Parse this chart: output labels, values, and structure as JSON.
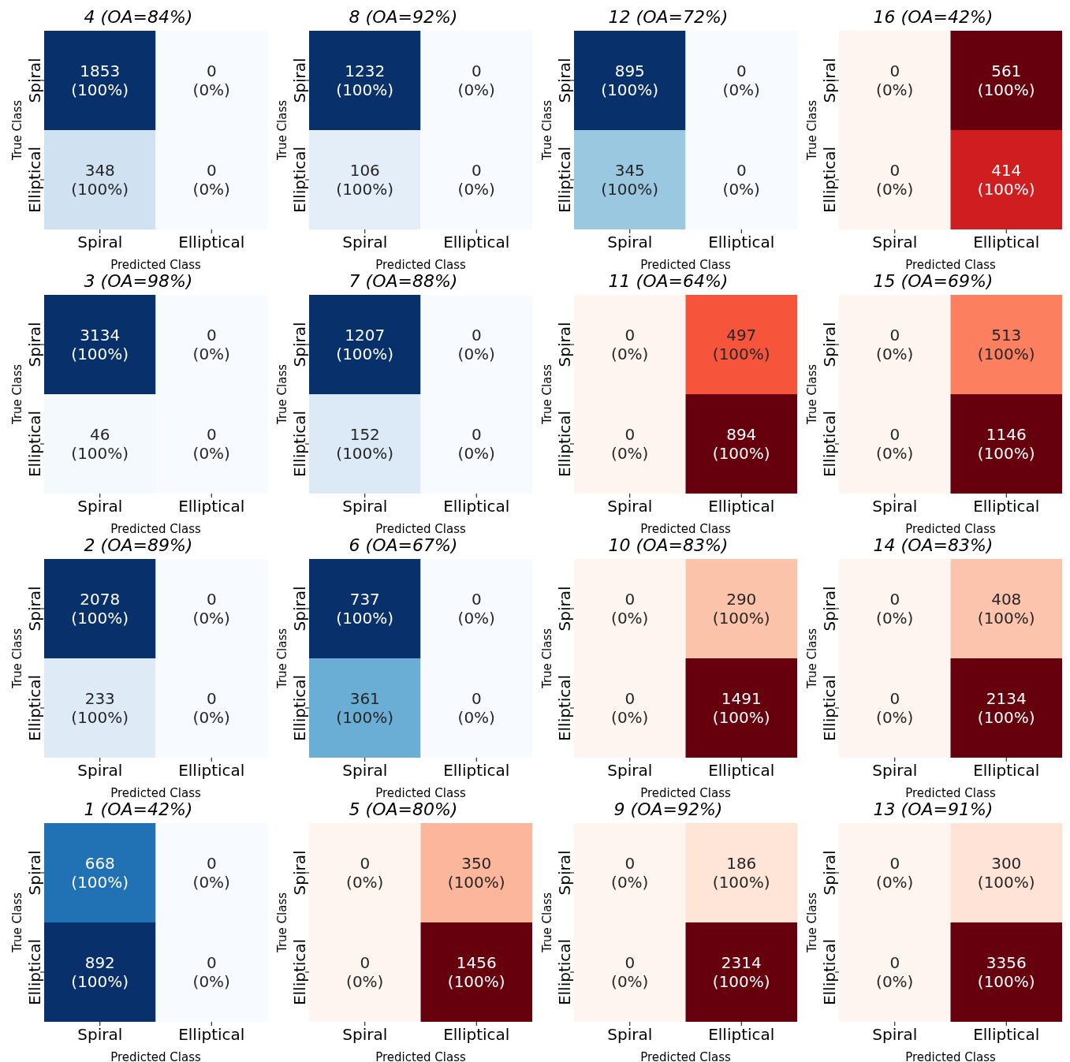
{
  "chart_data": [
    {
      "type": "heatmap",
      "title": "4 (OA=84%)",
      "xlabel": "Predicted Class",
      "ylabel": "True Class",
      "categories": [
        "Spiral",
        "Elliptical"
      ],
      "y_categories": [
        "Spiral",
        "Elliptical"
      ],
      "cells": [
        [
          1853,
          0
        ],
        [
          348,
          0
        ]
      ],
      "data_labels": true,
      "annotations": [
        "(100%)",
        "(0%)",
        "(100%)",
        "(0%)"
      ],
      "colors": [
        [
          "#08306b",
          "#f7fbff"
        ],
        [
          "#d0e1f2",
          "#f7fbff"
        ]
      ]
    },
    {
      "type": "heatmap",
      "title": "8 (OA=92%)",
      "xlabel": "Predicted Class",
      "ylabel": "True Class",
      "categories": [
        "Spiral",
        "Elliptical"
      ],
      "y_categories": [
        "Spiral",
        "Elliptical"
      ],
      "cells": [
        [
          1232,
          0
        ],
        [
          106,
          0
        ]
      ],
      "data_labels": true,
      "annotations": [
        "(100%)",
        "(0%)",
        "(100%)",
        "(0%)"
      ],
      "colors": [
        [
          "#08306b",
          "#f7fbff"
        ],
        [
          "#e3eef9",
          "#f7fbff"
        ]
      ]
    },
    {
      "type": "heatmap",
      "title": "12 (OA=72%)",
      "xlabel": "Predicted Class",
      "ylabel": "True Class",
      "categories": [
        "Spiral",
        "Elliptical"
      ],
      "y_categories": [
        "Spiral",
        "Elliptical"
      ],
      "cells": [
        [
          895,
          0
        ],
        [
          345,
          0
        ]
      ],
      "data_labels": true,
      "annotations": [
        "(100%)",
        "(0%)",
        "(100%)",
        "(0%)"
      ],
      "colors": [
        [
          "#08306b",
          "#f7fbff"
        ],
        [
          "#9ac8e0",
          "#f7fbff"
        ]
      ]
    },
    {
      "type": "heatmap",
      "title": "16 (OA=42%)",
      "xlabel": "Predicted Class",
      "ylabel": "True Class",
      "categories": [
        "Spiral",
        "Elliptical"
      ],
      "y_categories": [
        "Spiral",
        "Elliptical"
      ],
      "cells": [
        [
          0,
          561
        ],
        [
          0,
          414
        ]
      ],
      "data_labels": true,
      "annotations": [
        "(0%)",
        "(100%)",
        "(0%)",
        "(100%)"
      ],
      "colors": [
        [
          "#fff5f0",
          "#67000d"
        ],
        [
          "#fff5f0",
          "#d01d1f"
        ]
      ]
    },
    {
      "type": "heatmap",
      "title": "3 (OA=98%)",
      "xlabel": "Predicted Class",
      "ylabel": "True Class",
      "categories": [
        "Spiral",
        "Elliptical"
      ],
      "y_categories": [
        "Spiral",
        "Elliptical"
      ],
      "cells": [
        [
          3134,
          0
        ],
        [
          46,
          0
        ]
      ],
      "data_labels": true,
      "annotations": [
        "(100%)",
        "(0%)",
        "(100%)",
        "(0%)"
      ],
      "colors": [
        [
          "#08306b",
          "#f7fbff"
        ],
        [
          "#f4f9fe",
          "#f7fbff"
        ]
      ]
    },
    {
      "type": "heatmap",
      "title": "7 (OA=88%)",
      "xlabel": "Predicted Class",
      "ylabel": "True Class",
      "categories": [
        "Spiral",
        "Elliptical"
      ],
      "y_categories": [
        "Spiral",
        "Elliptical"
      ],
      "cells": [
        [
          1207,
          0
        ],
        [
          152,
          0
        ]
      ],
      "data_labels": true,
      "annotations": [
        "(100%)",
        "(0%)",
        "(100%)",
        "(0%)"
      ],
      "colors": [
        [
          "#08306b",
          "#f7fbff"
        ],
        [
          "#dce9f6",
          "#f7fbff"
        ]
      ]
    },
    {
      "type": "heatmap",
      "title": "11 (OA=64%)",
      "xlabel": "Predicted Class",
      "ylabel": "True Class",
      "categories": [
        "Spiral",
        "Elliptical"
      ],
      "y_categories": [
        "Spiral",
        "Elliptical"
      ],
      "cells": [
        [
          0,
          497
        ],
        [
          0,
          894
        ]
      ],
      "data_labels": true,
      "annotations": [
        "(0%)",
        "(100%)",
        "(0%)",
        "(100%)"
      ],
      "colors": [
        [
          "#fff5f0",
          "#f6553c"
        ],
        [
          "#fff5f0",
          "#67000d"
        ]
      ]
    },
    {
      "type": "heatmap",
      "title": "15 (OA=69%)",
      "xlabel": "Predicted Class",
      "ylabel": "True Class",
      "categories": [
        "Spiral",
        "Elliptical"
      ],
      "y_categories": [
        "Spiral",
        "Elliptical"
      ],
      "cells": [
        [
          0,
          513
        ],
        [
          0,
          1146
        ]
      ],
      "data_labels": true,
      "annotations": [
        "(0%)",
        "(100%)",
        "(0%)",
        "(100%)"
      ],
      "colors": [
        [
          "#fff5f0",
          "#fc7f5f"
        ],
        [
          "#fff5f0",
          "#67000d"
        ]
      ]
    },
    {
      "type": "heatmap",
      "title": "2 (OA=89%)",
      "xlabel": "Predicted Class",
      "ylabel": "True Class",
      "categories": [
        "Spiral",
        "Elliptical"
      ],
      "y_categories": [
        "Spiral",
        "Elliptical"
      ],
      "cells": [
        [
          2078,
          0
        ],
        [
          233,
          0
        ]
      ],
      "data_labels": true,
      "annotations": [
        "(100%)",
        "(0%)",
        "(100%)",
        "(0%)"
      ],
      "colors": [
        [
          "#08306b",
          "#f7fbff"
        ],
        [
          "#deebf7",
          "#f7fbff"
        ]
      ]
    },
    {
      "type": "heatmap",
      "title": "6 (OA=67%)",
      "xlabel": "Predicted Class",
      "ylabel": "True Class",
      "categories": [
        "Spiral",
        "Elliptical"
      ],
      "y_categories": [
        "Spiral",
        "Elliptical"
      ],
      "cells": [
        [
          737,
          0
        ],
        [
          361,
          0
        ]
      ],
      "data_labels": true,
      "annotations": [
        "(100%)",
        "(0%)",
        "(100%)",
        "(0%)"
      ],
      "colors": [
        [
          "#08306b",
          "#f7fbff"
        ],
        [
          "#6aaed6",
          "#f7fbff"
        ]
      ]
    },
    {
      "type": "heatmap",
      "title": "10 (OA=83%)",
      "xlabel": "Predicted Class",
      "ylabel": "True Class",
      "categories": [
        "Spiral",
        "Elliptical"
      ],
      "y_categories": [
        "Spiral",
        "Elliptical"
      ],
      "cells": [
        [
          0,
          290
        ],
        [
          0,
          1491
        ]
      ],
      "data_labels": true,
      "annotations": [
        "(0%)",
        "(100%)",
        "(0%)",
        "(100%)"
      ],
      "colors": [
        [
          "#fff5f0",
          "#fcc3ab"
        ],
        [
          "#fff5f0",
          "#67000d"
        ]
      ]
    },
    {
      "type": "heatmap",
      "title": "14 (OA=83%)",
      "xlabel": "Predicted Class",
      "ylabel": "True Class",
      "categories": [
        "Spiral",
        "Elliptical"
      ],
      "y_categories": [
        "Spiral",
        "Elliptical"
      ],
      "cells": [
        [
          0,
          408
        ],
        [
          0,
          2134
        ]
      ],
      "data_labels": true,
      "annotations": [
        "(0%)",
        "(100%)",
        "(0%)",
        "(100%)"
      ],
      "colors": [
        [
          "#fff5f0",
          "#fcc4ad"
        ],
        [
          "#fff5f0",
          "#67000d"
        ]
      ]
    },
    {
      "type": "heatmap",
      "title": "1 (OA=42%)",
      "xlabel": "Predicted Class",
      "ylabel": "True Class",
      "categories": [
        "Spiral",
        "Elliptical"
      ],
      "y_categories": [
        "Spiral",
        "Elliptical"
      ],
      "cells": [
        [
          668,
          0
        ],
        [
          892,
          0
        ]
      ],
      "data_labels": true,
      "annotations": [
        "(100%)",
        "(0%)",
        "(100%)",
        "(0%)"
      ],
      "colors": [
        [
          "#2171b5",
          "#f7fbff"
        ],
        [
          "#08306b",
          "#f7fbff"
        ]
      ]
    },
    {
      "type": "heatmap",
      "title": "5 (OA=80%)",
      "xlabel": "Predicted Class",
      "ylabel": "True Class",
      "categories": [
        "Spiral",
        "Elliptical"
      ],
      "y_categories": [
        "Spiral",
        "Elliptical"
      ],
      "cells": [
        [
          0,
          350
        ],
        [
          0,
          1456
        ]
      ],
      "data_labels": true,
      "annotations": [
        "(0%)",
        "(100%)",
        "(0%)",
        "(100%)"
      ],
      "colors": [
        [
          "#fff5f0",
          "#fcb69b"
        ],
        [
          "#fff5f0",
          "#67000d"
        ]
      ]
    },
    {
      "type": "heatmap",
      "title": "9 (OA=92%)",
      "xlabel": "Predicted Class",
      "ylabel": "True Class",
      "categories": [
        "Spiral",
        "Elliptical"
      ],
      "y_categories": [
        "Spiral",
        "Elliptical"
      ],
      "cells": [
        [
          0,
          186
        ],
        [
          0,
          2314
        ]
      ],
      "data_labels": true,
      "annotations": [
        "(0%)",
        "(100%)",
        "(0%)",
        "(100%)"
      ],
      "colors": [
        [
          "#fff5f0",
          "#fee5d8"
        ],
        [
          "#fff5f0",
          "#67000d"
        ]
      ]
    },
    {
      "type": "heatmap",
      "title": "13 (OA=91%)",
      "xlabel": "Predicted Class",
      "ylabel": "True Class",
      "categories": [
        "Spiral",
        "Elliptical"
      ],
      "y_categories": [
        "Spiral",
        "Elliptical"
      ],
      "cells": [
        [
          0,
          300
        ],
        [
          0,
          3356
        ]
      ],
      "data_labels": true,
      "annotations": [
        "(0%)",
        "(100%)",
        "(0%)",
        "(100%)"
      ],
      "colors": [
        [
          "#fff5f0",
          "#fee3d6"
        ],
        [
          "#fff5f0",
          "#67000d"
        ]
      ]
    }
  ]
}
